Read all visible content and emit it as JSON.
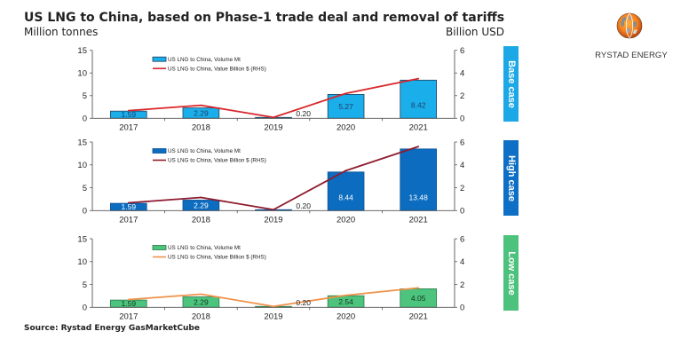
{
  "header": {
    "title": "US LNG to China, based on Phase-1 trade deal and removal of tariffs",
    "left_axis_unit": "Million tonnes",
    "right_axis_unit": "Billion USD"
  },
  "logo": {
    "icon": "rystad-globe-icon",
    "text": "RYSTAD ENERGY"
  },
  "source": "Source: Rystad Energy GasMarketCube",
  "chart_data": [
    {
      "type": "bar",
      "secondary_type": "line",
      "title": "Base case",
      "title_color": "#1ca8e6",
      "categories": [
        "2017",
        "2018",
        "2019",
        "2020",
        "2021"
      ],
      "series": [
        {
          "name": "US LNG to China, Volume Mt",
          "type": "bar",
          "axis": "left",
          "values": [
            1.59,
            2.29,
            0.2,
            5.27,
            8.42
          ],
          "color": "#1aaeea",
          "edge_color": "#1f3f5e"
        },
        {
          "name": "US LNG to China, Value Billion $ (RHS)",
          "type": "line",
          "axis": "right",
          "values": [
            0.68,
            1.15,
            0.08,
            2.2,
            3.5
          ],
          "color": "#d9262b"
        }
      ],
      "data_labels": [
        "1.59",
        "2.29",
        "0.20",
        "5.27",
        "8.42"
      ],
      "data_label_color": "#1d3f6a",
      "xlabel": "",
      "ylabel": "Million tonnes",
      "y2label": "Billion USD",
      "ylim": [
        0,
        15
      ],
      "y2lim": [
        0,
        6
      ],
      "yticks": [
        "0",
        "5",
        "10",
        "15"
      ],
      "y2ticks": [
        "0",
        "2",
        "4",
        "6"
      ],
      "legend": "top-center",
      "grid": false
    },
    {
      "type": "bar",
      "secondary_type": "line",
      "title": "High case",
      "title_color": "#0d6fc5",
      "categories": [
        "2017",
        "2018",
        "2019",
        "2020",
        "2021"
      ],
      "series": [
        {
          "name": "US LNG to China, Volume Mt",
          "type": "bar",
          "axis": "left",
          "values": [
            1.59,
            2.29,
            0.2,
            8.44,
            13.48
          ],
          "color": "#0b6cc0",
          "edge_color": "#0a4f94"
        },
        {
          "name": "US LNG to China, Value Billion $ (RHS)",
          "type": "line",
          "axis": "right",
          "values": [
            0.68,
            1.15,
            0.08,
            3.5,
            5.6
          ],
          "color": "#8e1b2e"
        }
      ],
      "data_labels": [
        "1.59",
        "2.29",
        "0.20",
        "8.44",
        "13.48"
      ],
      "data_label_color": "#ffffff",
      "xlabel": "",
      "ylabel": "Million tonnes",
      "y2label": "Billion USD",
      "ylim": [
        0,
        15
      ],
      "y2lim": [
        0,
        6
      ],
      "yticks": [
        "0",
        "5",
        "10",
        "15"
      ],
      "y2ticks": [
        "0",
        "2",
        "4",
        "6"
      ],
      "legend": "top-center",
      "grid": false
    },
    {
      "type": "bar",
      "secondary_type": "line",
      "title": "Low case",
      "title_color": "#4dc27c",
      "categories": [
        "2017",
        "2018",
        "2019",
        "2020",
        "2021"
      ],
      "series": [
        {
          "name": "US LNG to China, Volume Mt",
          "type": "bar",
          "axis": "left",
          "values": [
            1.59,
            2.29,
            0.2,
            2.54,
            4.05
          ],
          "color": "#4cc47e",
          "edge_color": "#2a7a48"
        },
        {
          "name": "US LNG to China, Value Billion $ (RHS)",
          "type": "line",
          "axis": "right",
          "values": [
            0.68,
            1.15,
            0.08,
            1.05,
            1.7
          ],
          "color": "#f0924a"
        }
      ],
      "data_labels": [
        "1.59",
        "2.29",
        "0.20",
        "2.54",
        "4.05"
      ],
      "data_label_color": "#123820",
      "xlabel": "",
      "ylabel": "Million tonnes",
      "y2label": "Billion USD",
      "ylim": [
        0,
        15
      ],
      "y2lim": [
        0,
        6
      ],
      "yticks": [
        "0",
        "5",
        "10",
        "15"
      ],
      "y2ticks": [
        "0",
        "2",
        "4",
        "6"
      ],
      "legend": "top-center",
      "grid": false
    }
  ]
}
